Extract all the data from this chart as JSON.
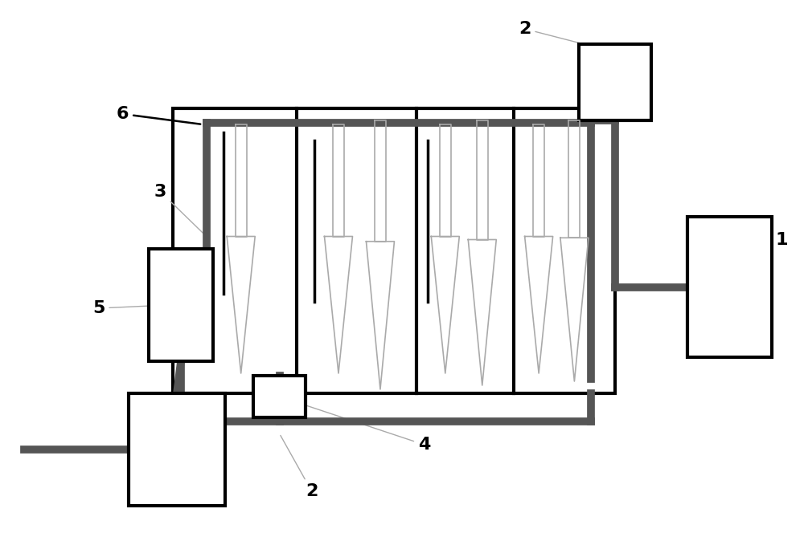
{
  "bg_color": "#ffffff",
  "black": "#000000",
  "gray": "#555555",
  "lgray": "#aaaaaa",
  "lw_tank": 3.0,
  "lw_gray_pipe": 7,
  "lw_black_stem": 2.5,
  "lw_plant": 1.2,
  "label_fs": 16
}
